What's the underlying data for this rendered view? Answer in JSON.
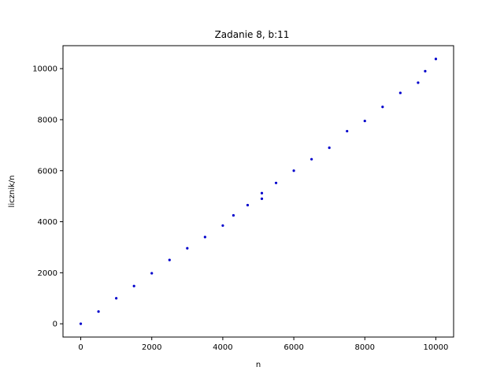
{
  "chart_data": {
    "type": "scatter",
    "title": "Zadanie 8, b:11",
    "xlabel": "n",
    "ylabel": "licznik/n",
    "xlim": [
      -500,
      10500
    ],
    "ylim": [
      -520,
      10900
    ],
    "xticks": [
      0,
      2000,
      4000,
      6000,
      8000,
      10000
    ],
    "yticks": [
      0,
      2000,
      4000,
      6000,
      8000,
      10000
    ],
    "xtick_labels": [
      "0",
      "2000",
      "4000",
      "6000",
      "8000",
      "10000"
    ],
    "ytick_labels": [
      "0",
      "2000",
      "4000",
      "6000",
      "8000",
      "10000"
    ],
    "grid": false,
    "series": [
      {
        "color": "#0000cc",
        "x": [
          0,
          500,
          1000,
          1500,
          2000,
          2500,
          3000,
          3500,
          4000,
          4300,
          4700,
          5100,
          5100,
          5500,
          6000,
          6500,
          7000,
          7500,
          8000,
          8500,
          9000,
          9500,
          9700,
          10000
        ],
        "y": [
          0,
          480,
          1000,
          1480,
          1980,
          2500,
          2960,
          3400,
          3850,
          4250,
          4650,
          4900,
          5120,
          5520,
          6000,
          6450,
          6900,
          7550,
          7950,
          8500,
          9050,
          9450,
          9900,
          10380
        ]
      }
    ]
  }
}
